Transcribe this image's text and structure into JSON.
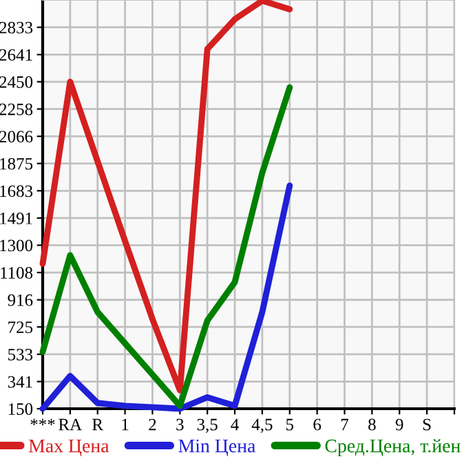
{
  "chart_data": {
    "type": "line",
    "categories": [
      "***",
      "RA",
      "R",
      "1",
      "2",
      "3",
      "3,5",
      "4",
      "4,5",
      "5",
      "6",
      "7",
      "8",
      "9",
      "S",
      null
    ],
    "series": [
      {
        "name": "Max Цена",
        "color": "#d42020",
        "values": [
          1170,
          2450,
          1890,
          1330,
          780,
          280,
          2680,
          2890,
          3020,
          2960,
          null,
          null,
          null,
          null,
          null,
          null
        ]
      },
      {
        "name": "Min Цена",
        "color": "#2020d8",
        "values": [
          150,
          380,
          190,
          170,
          160,
          150,
          230,
          170,
          830,
          1720,
          null,
          null,
          null,
          null,
          null,
          null
        ]
      },
      {
        "name": "Сред.Цена, т.йен",
        "color": "#008000",
        "values": [
          550,
          1230,
          830,
          610,
          390,
          170,
          770,
          1040,
          1810,
          2410,
          null,
          null,
          null,
          null,
          null,
          null
        ]
      }
    ],
    "ylim": [
      150,
      3025
    ],
    "yticks": [
      150,
      341,
      533,
      725,
      916,
      1108,
      1300,
      1491,
      1683,
      1875,
      2066,
      2258,
      2450,
      2641,
      2833
    ],
    "grid": true,
    "legend": "bottom",
    "marker": "none",
    "line_style": "solid"
  }
}
